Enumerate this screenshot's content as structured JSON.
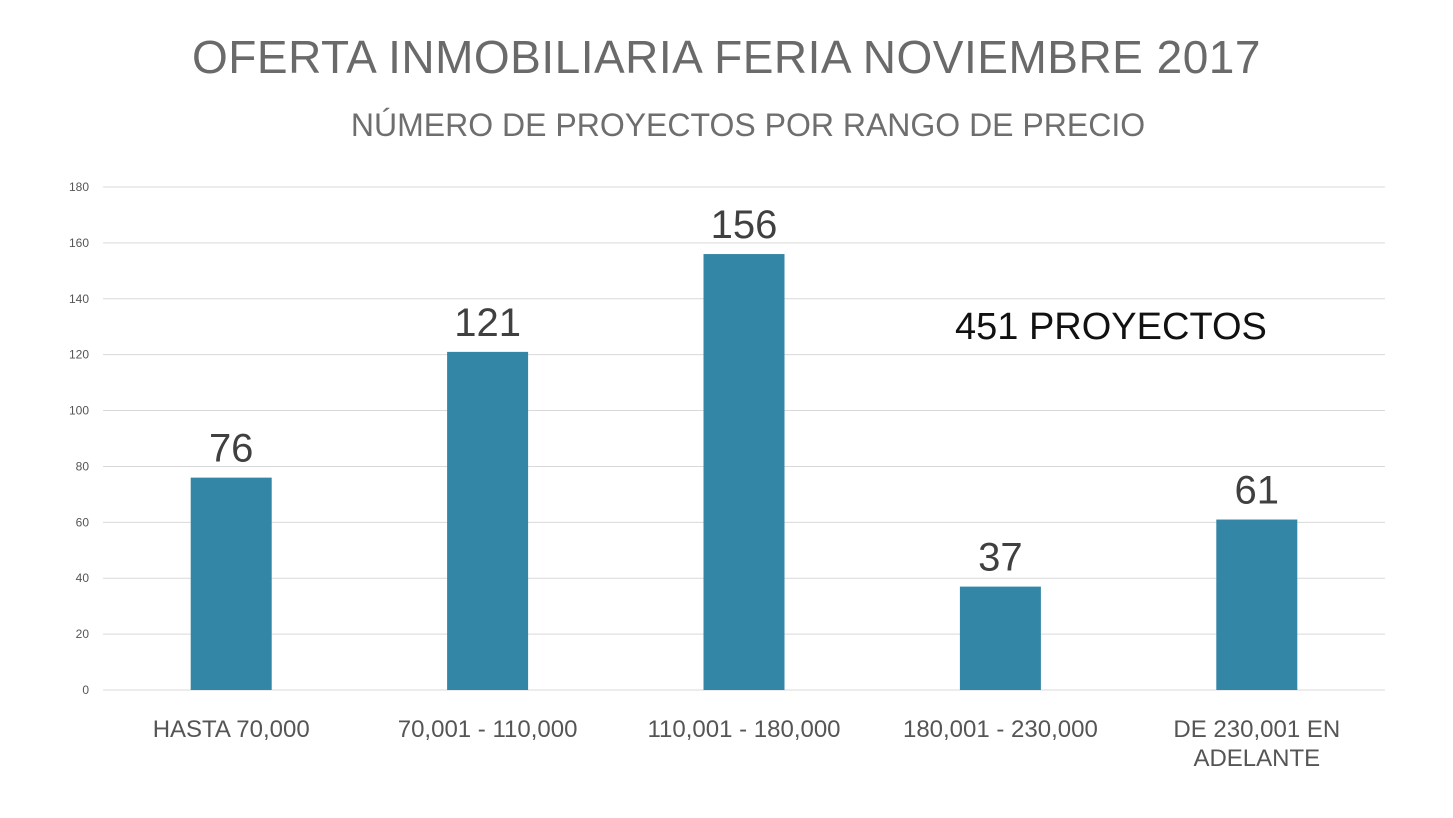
{
  "chart_data": {
    "type": "bar",
    "title": "OFERTA INMOBILIARIA FERIA NOVIEMBRE 2017",
    "subtitle": "NÚMERO DE PROYECTOS POR RANGO DE PRECIO",
    "categories": [
      [
        "HASTA 70,000"
      ],
      [
        "70,001 - 110,000"
      ],
      [
        "110,001 - 180,000"
      ],
      [
        "180,001 - 230,000"
      ],
      [
        "DE 230,001 EN",
        "ADELANTE"
      ]
    ],
    "values": [
      76,
      121,
      156,
      37,
      61
    ],
    "data_labels": [
      "76",
      "121",
      "156",
      "37",
      "61"
    ],
    "yticks": [
      "0",
      "20",
      "40",
      "60",
      "80",
      "100",
      "120",
      "140",
      "160",
      "180"
    ],
    "ylim": [
      0,
      180
    ],
    "xlabel": "",
    "ylabel": "",
    "grid": true,
    "legend": "none",
    "bar_color": "#3486a6",
    "grid_color": "#d9d9d9",
    "annotation": "451 PROYECTOS"
  }
}
